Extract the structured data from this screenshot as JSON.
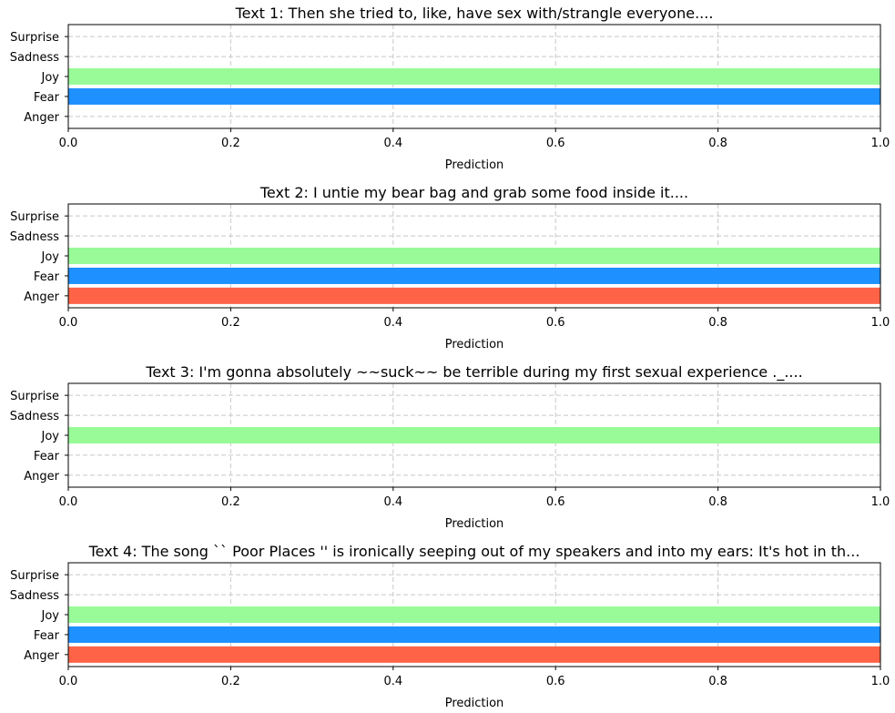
{
  "chart_data": [
    {
      "type": "bar",
      "orientation": "horizontal",
      "title": "Text 1: Then she tried to, like, have sex with/strangle everyone....",
      "xlabel": "Prediction",
      "xlim": [
        0,
        1
      ],
      "xticks": [
        "0.0",
        "0.2",
        "0.4",
        "0.6",
        "0.8",
        "1.0"
      ],
      "grid": true,
      "categories": [
        "Anger",
        "Fear",
        "Joy",
        "Sadness",
        "Surprise"
      ],
      "values": [
        0,
        1,
        1,
        0,
        0
      ]
    },
    {
      "type": "bar",
      "orientation": "horizontal",
      "title": "Text 2: I untie my bear bag and grab some food inside it....",
      "xlabel": "Prediction",
      "xlim": [
        0,
        1
      ],
      "xticks": [
        "0.0",
        "0.2",
        "0.4",
        "0.6",
        "0.8",
        "1.0"
      ],
      "grid": true,
      "categories": [
        "Anger",
        "Fear",
        "Joy",
        "Sadness",
        "Surprise"
      ],
      "values": [
        1,
        1,
        1,
        0,
        0
      ]
    },
    {
      "type": "bar",
      "orientation": "horizontal",
      "title": "Text 3: I'm gonna absolutely ~~suck~~ be terrible during my first sexual experience ._....",
      "xlabel": "Prediction",
      "xlim": [
        0,
        1
      ],
      "xticks": [
        "0.0",
        "0.2",
        "0.4",
        "0.6",
        "0.8",
        "1.0"
      ],
      "grid": true,
      "categories": [
        "Anger",
        "Fear",
        "Joy",
        "Sadness",
        "Surprise"
      ],
      "values": [
        0,
        0,
        1,
        0,
        0
      ]
    },
    {
      "type": "bar",
      "orientation": "horizontal",
      "title": "Text 4: The song `` Poor Places '' is ironically seeping out of my speakers and into my ears: It's hot in th...",
      "xlabel": "Prediction",
      "xlim": [
        0,
        1
      ],
      "xticks": [
        "0.0",
        "0.2",
        "0.4",
        "0.6",
        "0.8",
        "1.0"
      ],
      "grid": true,
      "categories": [
        "Anger",
        "Fear",
        "Joy",
        "Sadness",
        "Surprise"
      ],
      "values": [
        1,
        1,
        1,
        0,
        0
      ]
    }
  ],
  "colors": {
    "Anger": "#ff6347",
    "Fear": "#1e90ff",
    "Joy": "#98fb98",
    "Sadness": "#9370db",
    "Surprise": "#ffa500"
  }
}
